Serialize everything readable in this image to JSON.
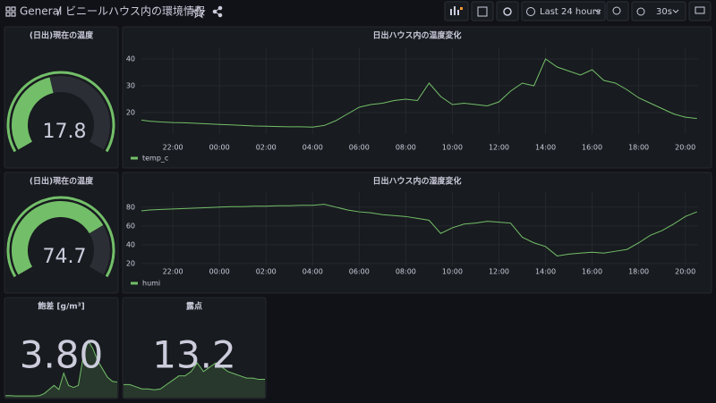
{
  "header": {
    "folder": "General",
    "separator": "/",
    "title": "ビニールハウス内の環境情報",
    "time_range": "Last 24 hours",
    "refresh": "30s"
  },
  "chart_data": [
    {
      "type": "gauge",
      "title": "(日出)現在の温度",
      "value": 17.8,
      "range": [
        0,
        40
      ],
      "color": "#73bf69"
    },
    {
      "type": "line",
      "title": "日出ハウス内の温度変化",
      "x": [
        20.65,
        21,
        21.5,
        22,
        22.5,
        23,
        23.5,
        24,
        24.5,
        25,
        25.5,
        26,
        26.5,
        27,
        27.5,
        28,
        28.5,
        29,
        29.5,
        30,
        30.5,
        31,
        31.5,
        32,
        32.5,
        33,
        33.5,
        34,
        34.5,
        35,
        35.5,
        36,
        36.5,
        37,
        37.5,
        38,
        38.5,
        39,
        39.5,
        40,
        40.5,
        41,
        41.5,
        42,
        42.5,
        43,
        43.5,
        44,
        44.5
      ],
      "series": [
        {
          "name": "temp_c",
          "color": "#73bf69",
          "values": [
            17.2,
            16.8,
            16.5,
            16.3,
            16.2,
            16,
            15.8,
            15.6,
            15.4,
            15.2,
            15,
            14.9,
            14.8,
            14.7,
            14.7,
            14.6,
            15.2,
            17,
            19.5,
            22,
            23,
            23.5,
            24.5,
            25,
            24.5,
            31,
            26,
            23,
            23.5,
            23,
            22.5,
            24,
            28,
            31,
            30,
            40,
            37,
            35.5,
            34,
            36,
            32,
            31,
            28.5,
            25.5,
            23.5,
            21.5,
            19.5,
            18.3,
            17.8
          ]
        }
      ],
      "xlim": [
        20.65,
        44.55
      ],
      "xticks": [
        {
          "value": 22,
          "label": "22:00"
        },
        {
          "value": 24,
          "label": "00:00"
        },
        {
          "value": 26,
          "label": "02:00"
        },
        {
          "value": 28,
          "label": "04:00"
        },
        {
          "value": 30,
          "label": "06:00"
        },
        {
          "value": 32,
          "label": "08:00"
        },
        {
          "value": 34,
          "label": "10:00"
        },
        {
          "value": 36,
          "label": "12:00"
        },
        {
          "value": 38,
          "label": "14:00"
        },
        {
          "value": 40,
          "label": "16:00"
        },
        {
          "value": 42,
          "label": "18:00"
        },
        {
          "value": 44,
          "label": "20:00"
        }
      ],
      "ylim": [
        12,
        44
      ],
      "yticks": [
        20,
        30,
        40
      ],
      "grid": true
    },
    {
      "type": "gauge",
      "title": "(日出)現在の温度",
      "value": 74.7,
      "range": [
        0,
        100
      ],
      "color": "#73bf69"
    },
    {
      "type": "line",
      "title": "日出ハウス内の湿度変化",
      "x": [
        20.65,
        21,
        21.5,
        22,
        22.5,
        23,
        23.5,
        24,
        24.5,
        25,
        25.5,
        26,
        26.5,
        27,
        27.5,
        28,
        28.5,
        29,
        29.5,
        30,
        30.5,
        31,
        31.5,
        32,
        32.5,
        33,
        33.5,
        34,
        34.5,
        35,
        35.5,
        36,
        36.5,
        37,
        37.5,
        38,
        38.5,
        39,
        39.5,
        40,
        40.5,
        41,
        41.5,
        42,
        42.5,
        43,
        43.5,
        44,
        44.5
      ],
      "series": [
        {
          "name": "humi",
          "color": "#73bf69",
          "values": [
            76,
            77,
            77.5,
            78,
            78.5,
            79,
            79.5,
            80,
            80.5,
            80.5,
            81,
            81,
            81.5,
            81.5,
            82,
            82,
            83,
            80,
            77,
            75,
            74,
            72,
            71,
            70,
            68,
            66,
            52,
            58,
            62,
            63,
            65,
            64,
            63,
            48,
            42,
            38,
            28,
            30,
            31,
            32,
            31,
            33,
            35,
            42,
            50,
            55,
            62,
            70,
            75
          ]
        }
      ],
      "xlim": [
        20.65,
        44.55
      ],
      "xticks": [
        {
          "value": 22,
          "label": "22:00"
        },
        {
          "value": 24,
          "label": "00:00"
        },
        {
          "value": 26,
          "label": "02:00"
        },
        {
          "value": 28,
          "label": "04:00"
        },
        {
          "value": 30,
          "label": "06:00"
        },
        {
          "value": 32,
          "label": "08:00"
        },
        {
          "value": 34,
          "label": "10:00"
        },
        {
          "value": 36,
          "label": "12:00"
        },
        {
          "value": 38,
          "label": "14:00"
        },
        {
          "value": 40,
          "label": "16:00"
        },
        {
          "value": 42,
          "label": "18:00"
        },
        {
          "value": 44,
          "label": "20:00"
        }
      ],
      "ylim": [
        17,
        96
      ],
      "yticks": [
        20,
        40,
        60,
        80
      ],
      "grid": true
    },
    {
      "type": "stat",
      "title": "飽差 [g/m³]",
      "value_label": "3.80",
      "value": 3.8,
      "color": "#73bf69",
      "sparkline": {
        "values": [
          0.5,
          0.5,
          0.4,
          0.4,
          0.4,
          0.4,
          0.4,
          0.5,
          1,
          2,
          3,
          2,
          6,
          3,
          2.5,
          3,
          10,
          14,
          12,
          9,
          7,
          5,
          4,
          3.8
        ],
        "ylim": [
          0,
          16
        ]
      }
    },
    {
      "type": "stat",
      "title": "露点",
      "value": 13.2,
      "color": "#73bf69",
      "sparkline": {
        "values": [
          12,
          12,
          11.5,
          11,
          11,
          10.8,
          11,
          12,
          13,
          14,
          14,
          15,
          17,
          15,
          16,
          17,
          16,
          15,
          14.5,
          14,
          13.5,
          13.5,
          13.2,
          13.2
        ],
        "ylim": [
          9,
          24
        ]
      }
    }
  ]
}
